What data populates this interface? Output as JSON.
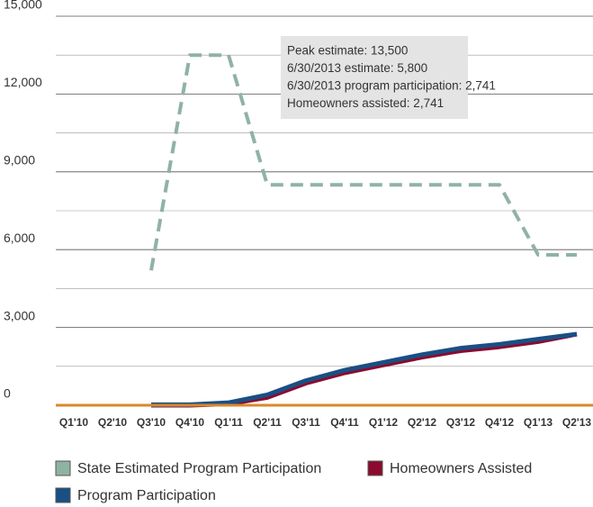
{
  "chart_data": {
    "type": "line",
    "categories": [
      "Q1'10",
      "Q2'10",
      "Q3'10",
      "Q4'10",
      "Q1'11",
      "Q2'11",
      "Q3'11",
      "Q4'11",
      "Q1'12",
      "Q2'12",
      "Q3'12",
      "Q4'12",
      "Q1'13",
      "Q2'13"
    ],
    "series": [
      {
        "name": "State Estimated Program Participation",
        "color": "#8fb3a3",
        "dashed": true,
        "values": [
          null,
          null,
          5200,
          13500,
          13500,
          8500,
          8500,
          8500,
          8500,
          8500,
          8500,
          8500,
          5800,
          5800
        ]
      },
      {
        "name": "Homeowners Assisted",
        "color": "#8b0a2e",
        "values": [
          null,
          null,
          0,
          0,
          50,
          300,
          850,
          1250,
          1550,
          1850,
          2100,
          2250,
          2450,
          2741
        ]
      },
      {
        "name": "Program Participation",
        "color": "#1a4f84",
        "values": [
          null,
          null,
          20,
          20,
          100,
          400,
          950,
          1350,
          1650,
          1950,
          2200,
          2350,
          2550,
          2741
        ]
      }
    ],
    "ylim": [
      0,
      15000
    ],
    "yticks": [
      {
        "value": 0,
        "label": "0"
      },
      {
        "value": 3000,
        "label": "3,000"
      },
      {
        "value": 6000,
        "label": "6,000"
      },
      {
        "value": 9000,
        "label": "9,000"
      },
      {
        "value": 12000,
        "label": "12,000"
      },
      {
        "value": 15000,
        "label": "15,000"
      }
    ],
    "yticks_minor": [
      1500,
      4500,
      7500,
      10500,
      13500
    ],
    "grid": true,
    "baseline_color": "#d9892b",
    "annotations": [
      "Peak estimate: 13,500",
      "6/30/2013 estimate: 5,800",
      "6/30/2013 program participation: 2,741",
      "Homeowners assisted: 2,741"
    ]
  }
}
